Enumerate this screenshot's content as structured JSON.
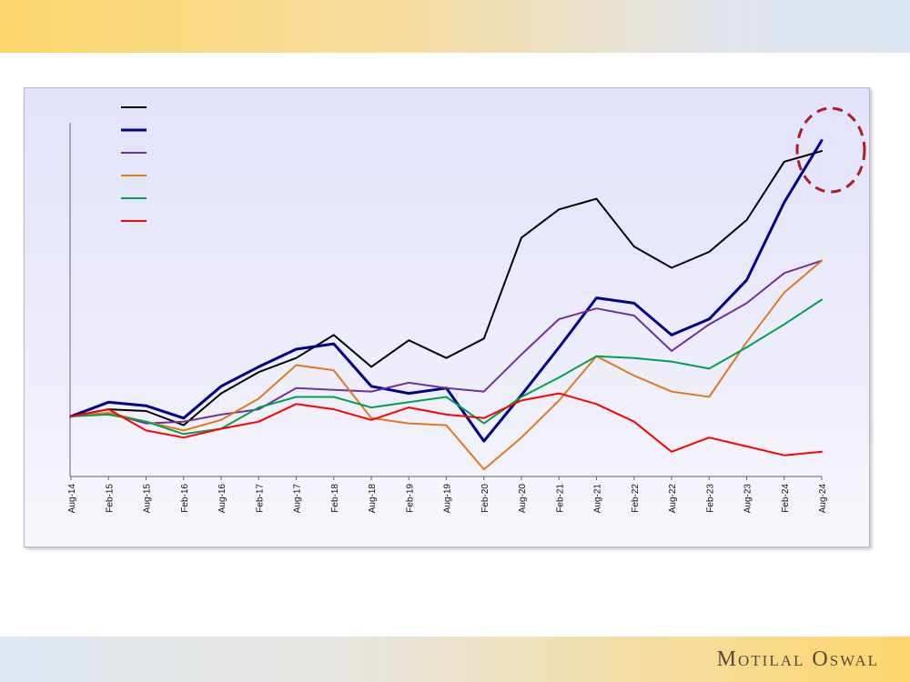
{
  "brand": {
    "name": "Motilal Oswal"
  },
  "chart_data": {
    "type": "line",
    "title": "",
    "xlabel": "",
    "ylabel": "",
    "categories": [
      "Aug-14",
      "Feb-15",
      "Aug-15",
      "Feb-16",
      "Aug-16",
      "Feb-17",
      "Aug-17",
      "Feb-18",
      "Aug-18",
      "Feb-19",
      "Aug-19",
      "Feb-20",
      "Aug-20",
      "Feb-21",
      "Aug-21",
      "Feb-22",
      "Aug-22",
      "Feb-23",
      "Aug-23",
      "Feb-24",
      "Aug-24"
    ],
    "ylim": [
      0,
      100
    ],
    "grid": false,
    "legend_position": "top-left",
    "highlight": "dashed red circle around series endpoints at Aug-24",
    "series": [
      {
        "color": "#000000",
        "values": [
          17,
          19,
          18.5,
          14.5,
          23.5,
          29.5,
          33.5,
          40,
          31,
          38.5,
          33.5,
          39,
          67.5,
          75.5,
          78.5,
          65,
          59,
          63.5,
          72.5,
          89,
          92
        ]
      },
      {
        "color": "#00008b",
        "values": [
          17,
          21,
          20,
          16.5,
          25.5,
          31,
          36,
          37.5,
          25.5,
          23.5,
          25,
          10,
          23,
          36.5,
          50.5,
          49,
          40,
          44.5,
          55.5,
          77.5,
          95
        ]
      },
      {
        "color": "#7030a0",
        "values": [
          17,
          18,
          15,
          15.5,
          17.5,
          19,
          25,
          24.5,
          24,
          26.5,
          25,
          24,
          34.5,
          44.5,
          47.5,
          45.5,
          35.5,
          43,
          49,
          57.5,
          61
        ]
      },
      {
        "color": "#e07a1a",
        "values": [
          17,
          18,
          15.5,
          13,
          16,
          22,
          31.5,
          30,
          16.5,
          15,
          14.5,
          2,
          11,
          21.5,
          34,
          28.5,
          24,
          22.5,
          38,
          52,
          61
        ]
      },
      {
        "color": "#00a050",
        "values": [
          17,
          17.5,
          15.5,
          12,
          13.5,
          19.5,
          22.5,
          22.5,
          19.5,
          21,
          22.5,
          15,
          22.5,
          28,
          34,
          33.5,
          32.5,
          30.5,
          36.5,
          43,
          50
        ]
      },
      {
        "color": "#ff0000",
        "values": [
          17,
          19,
          13,
          11,
          13.5,
          15.5,
          20.5,
          19,
          16,
          19.5,
          17.5,
          16.5,
          21.5,
          23.5,
          20.5,
          15.5,
          7,
          11,
          8.5,
          6,
          7
        ]
      }
    ]
  }
}
